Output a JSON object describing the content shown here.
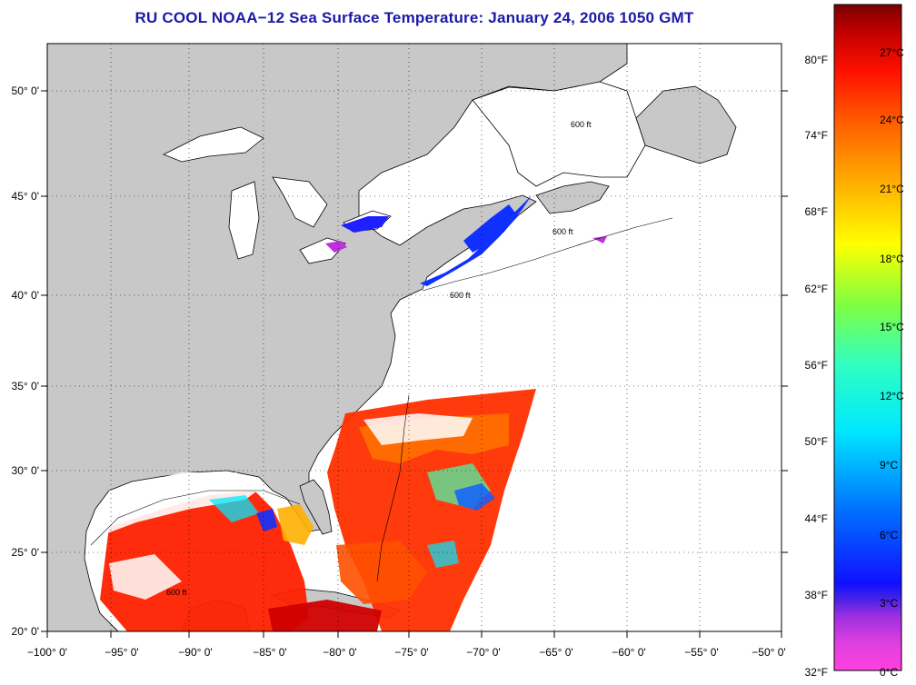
{
  "title": "RU COOL  NOAA−12  Sea Surface Temperature:  January 24, 2006 1050 GMT",
  "map": {
    "lon_labels": [
      "−100° 0'",
      "−95° 0'",
      "−90° 0'",
      "−85° 0'",
      "−80° 0'",
      "−75° 0'",
      "−70° 0'",
      "−65° 0'",
      "−60° 0'",
      "−55° 0'",
      "−50° 0'"
    ],
    "lat_labels": [
      "50° 0'",
      "45° 0'",
      "40° 0'",
      "35° 0'",
      "30° 0'",
      "25° 0'",
      "20° 0'"
    ],
    "isobath_label": "600 ft",
    "colors": {
      "land": "#c8c8c8",
      "ocean": "#ffffff",
      "coast": "#000000"
    }
  },
  "colorbar": {
    "fahrenheit_labels": [
      "80°F",
      "74°F",
      "68°F",
      "62°F",
      "56°F",
      "50°F",
      "44°F",
      "38°F",
      "32°F"
    ],
    "celsius_labels": [
      "27°C",
      "24°C",
      "21°C",
      "18°C",
      "15°C",
      "12°C",
      "9°C",
      "6°C",
      "3°C",
      "0°C"
    ],
    "stops": [
      "#ff40e0",
      "#c030e0",
      "#7020e0",
      "#2020ff",
      "#0080ff",
      "#00e8ff",
      "#40ffb0",
      "#a0ff40",
      "#ffff00",
      "#ffb000",
      "#ff6000",
      "#ff1000",
      "#d00000",
      "#800000"
    ]
  }
}
